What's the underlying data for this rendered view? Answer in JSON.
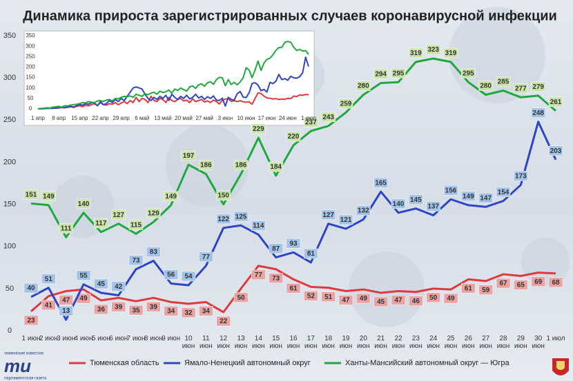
{
  "title": "Динамика прироста зарегистрированных случаев коронавирусной инфекции",
  "logo": {
    "top": "тюменские известия",
    "mark": "ти",
    "bottom": "парламентская газета"
  },
  "chart_data": [
    {
      "type": "line",
      "categories": [
        "1 июн",
        "2 июн",
        "3 июн",
        "4 июн",
        "5 июн",
        "6 июн",
        "7 июн",
        "8 июн",
        "9 июн",
        "10 июн",
        "11 июн",
        "12 июн",
        "13 июн",
        "14 июн",
        "15 июн",
        "16 июн",
        "17 июн",
        "18 июн",
        "19 июн",
        "20 июн",
        "21 июн",
        "22 июн",
        "23 июн",
        "24 июн",
        "25 июн",
        "26 июн",
        "27 июн",
        "28 июн",
        "29 июн",
        "30 июн",
        "1 июл"
      ],
      "ylim": [
        0,
        350
      ],
      "yticks": [
        0,
        50,
        100,
        150,
        200,
        250,
        300,
        350
      ],
      "grid": false,
      "legend": "bottom",
      "series": [
        {
          "name": "Тюменская область",
          "color": "#e0393b",
          "label_color": "#eaa3a3",
          "values": [
            23,
            41,
            47,
            49,
            36,
            39,
            35,
            39,
            34,
            32,
            34,
            22,
            50,
            77,
            73,
            61,
            52,
            51,
            47,
            49,
            45,
            47,
            46,
            50,
            49,
            61,
            59,
            67,
            65,
            69,
            68
          ]
        },
        {
          "name": "Ямало-Ненецкий автономный округ",
          "color": "#2e44c6",
          "label_color": "#a3c4e8",
          "values": [
            40,
            51,
            13,
            55,
            45,
            42,
            73,
            83,
            56,
            54,
            77,
            122,
            125,
            114,
            87,
            93,
            81,
            127,
            121,
            132,
            165,
            140,
            145,
            137,
            156,
            149,
            147,
            154,
            173,
            248,
            203
          ]
        },
        {
          "name": "Ханты-Мансийский автономный округ — Югра",
          "color": "#1fa83c",
          "label_color": "#c9e3a8",
          "values": [
            151,
            149,
            111,
            140,
            117,
            127,
            115,
            129,
            149,
            197,
            186,
            150,
            186,
            229,
            184,
            220,
            237,
            243,
            259,
            280,
            294,
            295,
            319,
            323,
            319,
            295,
            280,
            285,
            277,
            279,
            261
          ]
        }
      ]
    },
    {
      "type": "line",
      "categories": [
        "1 апр",
        null,
        null,
        null,
        null,
        null,
        null,
        "8 апр",
        null,
        null,
        null,
        null,
        null,
        null,
        "15 апр",
        null,
        null,
        null,
        null,
        null,
        null,
        "22 апр",
        null,
        null,
        null,
        null,
        null,
        null,
        "29 апр",
        null,
        null,
        null,
        null,
        null,
        null,
        "6 май",
        null,
        null,
        null,
        null,
        null,
        null,
        "13 май",
        null,
        null,
        null,
        null,
        null,
        null,
        "20 май",
        null,
        null,
        null,
        null,
        null,
        null,
        "27 май",
        null,
        null,
        null,
        null,
        null,
        null,
        "3 июн",
        null,
        null,
        null,
        null,
        null,
        null,
        "10 июн",
        null,
        null,
        null,
        null,
        null,
        null,
        "17 июн",
        null,
        null,
        null,
        null,
        null,
        null,
        "24 июн",
        null,
        null,
        null,
        null,
        null,
        null,
        "1 июл"
      ],
      "ylim": [
        0,
        350
      ],
      "yticks": [
        0,
        50,
        100,
        150,
        200,
        250,
        300,
        350
      ],
      "grid": false,
      "series": [
        {
          "color": "#e0393b",
          "values": [
            0,
            1,
            2,
            2,
            3,
            4,
            3,
            5,
            6,
            5,
            8,
            10,
            7,
            12,
            15,
            10,
            18,
            14,
            20,
            25,
            15,
            30,
            20,
            18,
            25,
            22,
            30,
            20,
            28,
            35,
            25,
            40,
            30,
            55,
            35,
            50,
            45,
            30,
            60,
            40,
            35,
            50,
            45,
            30,
            55,
            40,
            35,
            45,
            50,
            38,
            42,
            30,
            48,
            35,
            40,
            45,
            33,
            38,
            30,
            42,
            35,
            23,
            41,
            47,
            49,
            36,
            39,
            35,
            39,
            34,
            32,
            34,
            22,
            50,
            77,
            73,
            61,
            52,
            51,
            47,
            49,
            45,
            47,
            46,
            50,
            49,
            61,
            59,
            67,
            65,
            69,
            68
          ]
        },
        {
          "color": "#2e44c6",
          "values": [
            0,
            0,
            1,
            2,
            3,
            2,
            5,
            4,
            8,
            6,
            10,
            12,
            9,
            15,
            20,
            18,
            25,
            22,
            30,
            28,
            15,
            35,
            20,
            25,
            40,
            30,
            45,
            35,
            50,
            40,
            60,
            80,
            100,
            105,
            100,
            95,
            70,
            50,
            40,
            55,
            45,
            60,
            50,
            65,
            40,
            70,
            55,
            45,
            60,
            50,
            65,
            48,
            55,
            70,
            52,
            60,
            45,
            58,
            50,
            62,
            42,
            40,
            51,
            13,
            55,
            45,
            42,
            73,
            83,
            56,
            54,
            77,
            122,
            125,
            114,
            87,
            93,
            81,
            127,
            121,
            132,
            165,
            140,
            145,
            137,
            156,
            149,
            147,
            154,
            173,
            248,
            203
          ]
        },
        {
          "color": "#1fa83c",
          "values": [
            0,
            2,
            3,
            5,
            4,
            8,
            10,
            12,
            8,
            15,
            14,
            18,
            20,
            22,
            25,
            30,
            28,
            35,
            32,
            30,
            38,
            40,
            35,
            42,
            45,
            38,
            50,
            48,
            55,
            60,
            58,
            62,
            55,
            70,
            65,
            60,
            72,
            68,
            75,
            80,
            70,
            85,
            78,
            82,
            90,
            75,
            95,
            88,
            100,
            92,
            85,
            105,
            110,
            98,
            115,
            120,
            108,
            125,
            130,
            118,
            140,
            151,
            149,
            111,
            140,
            117,
            127,
            115,
            129,
            149,
            197,
            186,
            150,
            186,
            229,
            184,
            220,
            237,
            243,
            259,
            280,
            294,
            295,
            319,
            323,
            319,
            295,
            280,
            285,
            277,
            279,
            261
          ]
        }
      ]
    }
  ]
}
